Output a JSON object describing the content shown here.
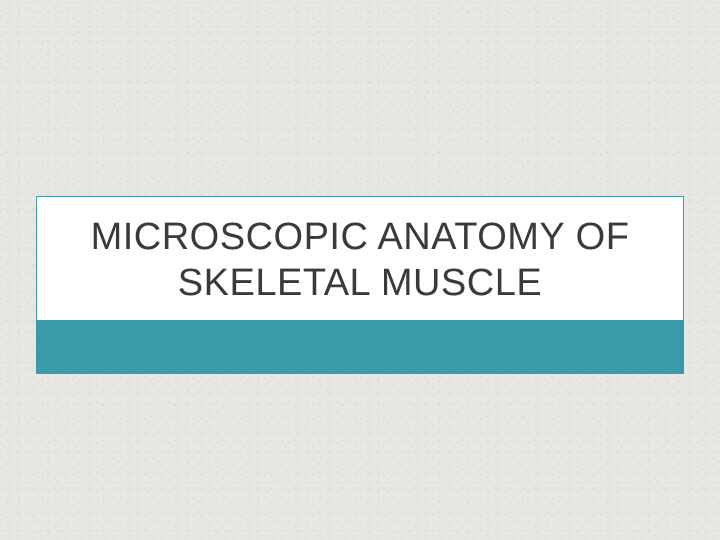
{
  "slide": {
    "title": "MICROSCOPIC ANATOMY OF SKELETAL MUSCLE",
    "background_color": "#e8e7e4",
    "title_box": {
      "background_color": "#ffffff",
      "border_color": "#3a9aa8",
      "accent_color": "#3a9aa8",
      "text_color": "#3a3a3a",
      "title_fontsize": 38,
      "accent_bar_height": 54
    }
  }
}
